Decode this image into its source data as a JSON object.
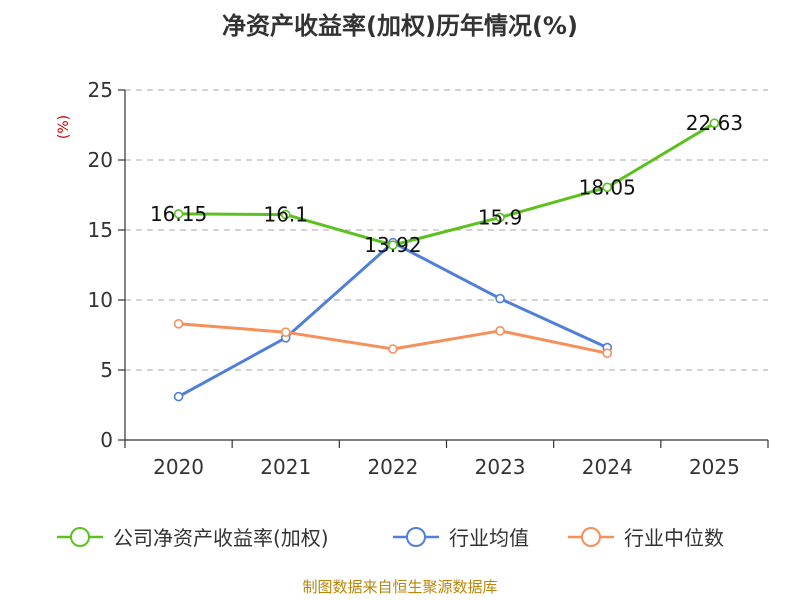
{
  "chart_data": {
    "type": "line",
    "title": "净资产收益率(加权)历年情况(%)",
    "ylabel": "(%)",
    "xlabel": "",
    "categories": [
      "2020",
      "2021",
      "2022",
      "2023",
      "2024",
      "2025"
    ],
    "ylim": [
      0,
      25
    ],
    "yticks": [
      0,
      5,
      10,
      15,
      20,
      25
    ],
    "grid": true,
    "legend_position": "bottom",
    "series": [
      {
        "name": "公司净资产收益率(加权)",
        "color": "#5cc11f",
        "values": [
          16.15,
          16.1,
          13.92,
          15.9,
          18.05,
          22.63
        ],
        "labels": [
          "16.15",
          "16.1",
          "13.92",
          "15.9",
          "18.05",
          "22.63"
        ]
      },
      {
        "name": "行业均值",
        "color": "#4f7fd9",
        "values": [
          3.1,
          7.3,
          14.1,
          10.1,
          6.6,
          null
        ]
      },
      {
        "name": "行业中位数",
        "color": "#f5905a",
        "values": [
          8.3,
          7.7,
          6.5,
          7.8,
          6.2,
          null
        ]
      }
    ],
    "ylabel_color": "#cc0000"
  },
  "source": {
    "text": "制图数据来自恒生聚源数据库",
    "color": "#b8860b"
  }
}
